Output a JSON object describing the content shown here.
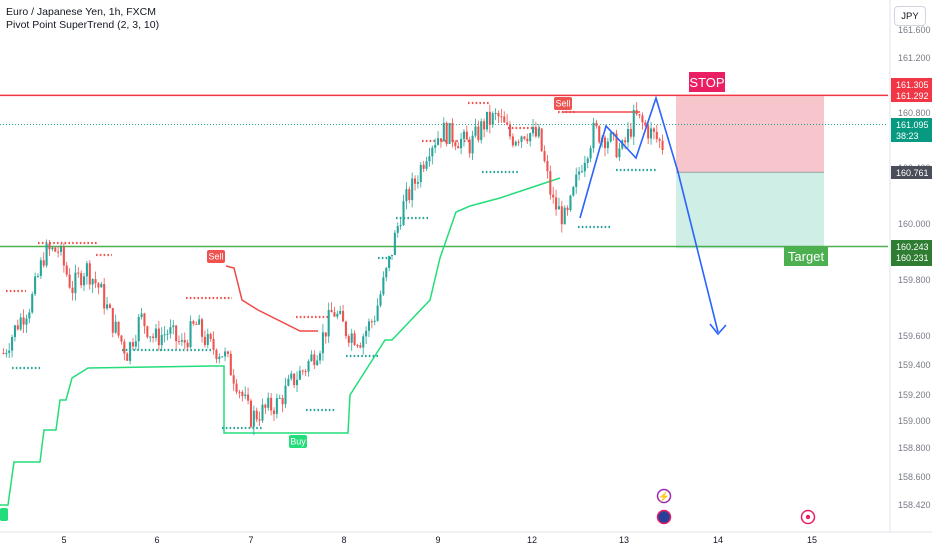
{
  "legend": {
    "symbol_line": "Euro / Japanese Yen, 1h, FXCM",
    "indicator_line": "Pivot Point SuperTrend (2, 3, 10)"
  },
  "currency": "JPY",
  "labels": {
    "stop": "STOP",
    "target": "Target",
    "sell": "Sell",
    "buy": "Buy",
    "countdown": "38:23"
  },
  "colors": {
    "up": "#26a69a",
    "down": "#ef5350",
    "stop_line": "#f23645",
    "target_line": "#4caf50",
    "stop_zone": "#f7c6cc",
    "target_zone": "#cfeee6",
    "trend_up": "#22dd7a",
    "trend_down": "#f04848",
    "arrow": "#2962ff",
    "price_tag": "#089981"
  },
  "chart_data": {
    "type": "candlestick",
    "title": "",
    "price_levels": {
      "stop_upper": 161.305,
      "stop": 161.292,
      "last": 161.095,
      "entry": 160.761,
      "target_upper": 160.243,
      "target": 160.231
    },
    "y_ticks": [
      "161.600",
      "161.200",
      "160.800",
      "160.400",
      "160.000",
      "159.800",
      "159.600",
      "159.400",
      "159.200",
      "159.000",
      "158.800",
      "158.600",
      "158.420"
    ],
    "x_ticks": [
      "5",
      "6",
      "7",
      "8",
      "9",
      "12",
      "13",
      "14",
      "15"
    ],
    "ylim": [
      158.33,
      161.85
    ],
    "close_path": [
      159.5,
      159.7,
      159.85,
      160.2,
      160.22,
      159.95,
      160.1,
      159.95,
      159.7,
      159.5,
      159.75,
      159.6,
      159.65,
      159.55,
      159.7,
      159.55,
      159.5,
      159.3,
      159.05,
      159.1,
      159.15,
      159.3,
      159.4,
      159.55,
      159.8,
      159.65,
      159.6,
      159.75,
      160.1,
      160.5,
      160.7,
      160.95,
      161.05,
      161.0,
      160.95,
      161.1,
      161.15,
      161.0,
      161.05,
      161.0,
      160.55,
      160.42,
      160.8,
      161.05,
      161.0,
      160.9,
      161.15,
      161.05,
      160.95
    ]
  }
}
